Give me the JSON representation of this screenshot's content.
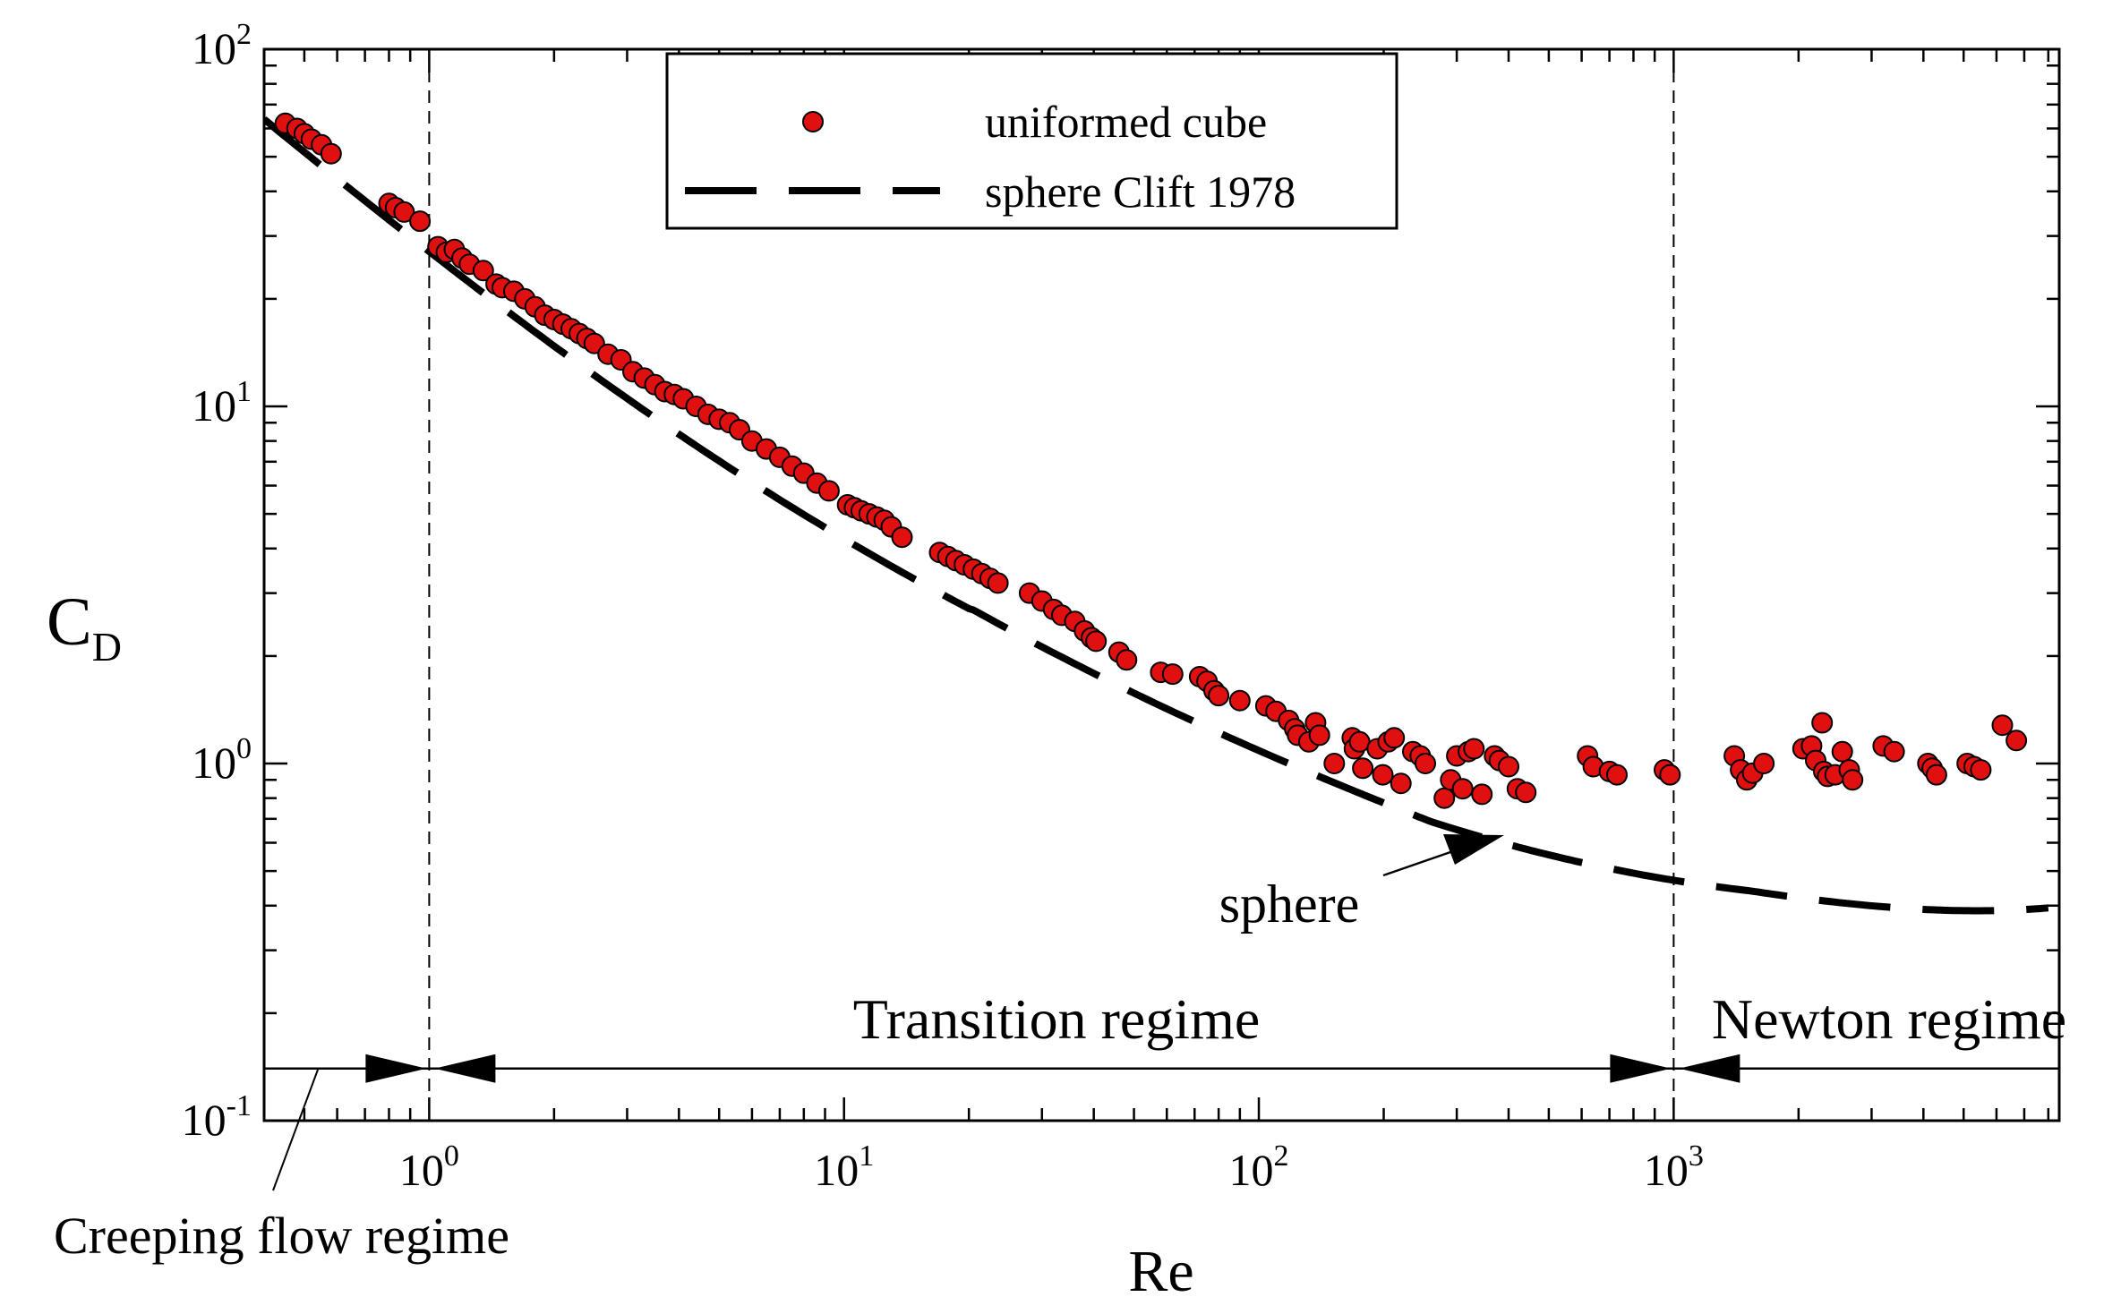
{
  "chart_data": {
    "type": "scatter",
    "title": "",
    "xlabel": "Re",
    "ylabel": "C",
    "ylabel_sub": "D",
    "xscale": "log",
    "yscale": "log",
    "xlim": [
      0.4,
      8500
    ],
    "ylim": [
      0.1,
      100
    ],
    "x_ticks": [
      {
        "value": 1,
        "base": "10",
        "exp": "0"
      },
      {
        "value": 10,
        "base": "10",
        "exp": "1"
      },
      {
        "value": 100,
        "base": "10",
        "exp": "2"
      },
      {
        "value": 1000,
        "base": "10",
        "exp": "3"
      }
    ],
    "y_ticks": [
      {
        "value": 0.1,
        "base": "10",
        "exp": "-1"
      },
      {
        "value": 1,
        "base": "10",
        "exp": "0"
      },
      {
        "value": 10,
        "base": "10",
        "exp": "1"
      },
      {
        "value": 100,
        "base": "10",
        "exp": "2"
      }
    ],
    "grid": false,
    "legend": {
      "position": "top-center",
      "entries": [
        {
          "label": "uniformed cube",
          "marker": "circle"
        },
        {
          "label": "sphere Clift 1978",
          "marker": "long-dash line"
        }
      ]
    },
    "series": [
      {
        "name": "uniformed cube",
        "kind": "scatter",
        "color": "#e01010",
        "edge_color": "#000000",
        "points": [
          [
            0.45,
            62
          ],
          [
            0.48,
            60
          ],
          [
            0.5,
            58
          ],
          [
            0.52,
            56
          ],
          [
            0.55,
            54
          ],
          [
            0.58,
            51
          ],
          [
            0.8,
            37
          ],
          [
            0.83,
            36
          ],
          [
            0.87,
            35
          ],
          [
            0.95,
            33
          ],
          [
            1.05,
            28
          ],
          [
            1.1,
            27
          ],
          [
            1.15,
            27.5
          ],
          [
            1.2,
            26
          ],
          [
            1.25,
            25
          ],
          [
            1.35,
            24
          ],
          [
            1.45,
            22
          ],
          [
            1.5,
            21.5
          ],
          [
            1.6,
            21
          ],
          [
            1.7,
            20
          ],
          [
            1.8,
            19
          ],
          [
            1.9,
            18
          ],
          [
            2.0,
            17.5
          ],
          [
            2.1,
            17
          ],
          [
            2.2,
            16.5
          ],
          [
            2.3,
            16
          ],
          [
            2.4,
            15.5
          ],
          [
            2.5,
            15
          ],
          [
            2.7,
            14
          ],
          [
            2.9,
            13.5
          ],
          [
            3.1,
            12.5
          ],
          [
            3.3,
            12
          ],
          [
            3.5,
            11.5
          ],
          [
            3.7,
            11
          ],
          [
            3.9,
            10.8
          ],
          [
            4.1,
            10.5
          ],
          [
            4.4,
            10
          ],
          [
            4.7,
            9.5
          ],
          [
            5.0,
            9.2
          ],
          [
            5.3,
            9
          ],
          [
            5.6,
            8.6
          ],
          [
            6.0,
            8
          ],
          [
            6.5,
            7.6
          ],
          [
            7.0,
            7.2
          ],
          [
            7.5,
            6.8
          ],
          [
            8.0,
            6.5
          ],
          [
            8.6,
            6.1
          ],
          [
            9.2,
            5.8
          ],
          [
            10.2,
            5.3
          ],
          [
            10.6,
            5.2
          ],
          [
            11,
            5.1
          ],
          [
            11.5,
            5
          ],
          [
            12,
            4.9
          ],
          [
            12.5,
            4.8
          ],
          [
            13,
            4.6
          ],
          [
            13.8,
            4.3
          ],
          [
            17,
            3.9
          ],
          [
            17.8,
            3.8
          ],
          [
            18.6,
            3.7
          ],
          [
            19.5,
            3.6
          ],
          [
            20.5,
            3.5
          ],
          [
            21.5,
            3.4
          ],
          [
            22.5,
            3.3
          ],
          [
            23.5,
            3.2
          ],
          [
            28,
            3.0
          ],
          [
            30,
            2.85
          ],
          [
            32,
            2.7
          ],
          [
            33.5,
            2.6
          ],
          [
            36,
            2.5
          ],
          [
            38,
            2.35
          ],
          [
            39.5,
            2.25
          ],
          [
            40.5,
            2.2
          ],
          [
            46,
            2.05
          ],
          [
            48,
            1.95
          ],
          [
            58,
            1.8
          ],
          [
            62,
            1.78
          ],
          [
            72,
            1.75
          ],
          [
            75,
            1.7
          ],
          [
            78,
            1.6
          ],
          [
            80,
            1.55
          ],
          [
            90,
            1.5
          ],
          [
            104,
            1.45
          ],
          [
            110,
            1.4
          ],
          [
            118,
            1.32
          ],
          [
            122,
            1.25
          ],
          [
            124,
            1.2
          ],
          [
            132,
            1.15
          ],
          [
            137,
            1.3
          ],
          [
            140,
            1.2
          ],
          [
            152,
            1.0
          ],
          [
            168,
            1.18
          ],
          [
            170,
            1.1
          ],
          [
            175,
            1.15
          ],
          [
            178,
            0.97
          ],
          [
            193,
            1.1
          ],
          [
            199,
            0.93
          ],
          [
            205,
            1.15
          ],
          [
            212,
            1.18
          ],
          [
            220,
            0.88
          ],
          [
            235,
            1.08
          ],
          [
            245,
            1.05
          ],
          [
            252,
            1.0
          ],
          [
            280,
            0.8
          ],
          [
            290,
            0.9
          ],
          [
            300,
            1.05
          ],
          [
            310,
            0.85
          ],
          [
            320,
            1.08
          ],
          [
            330,
            1.1
          ],
          [
            345,
            0.82
          ],
          [
            370,
            1.05
          ],
          [
            380,
            1.02
          ],
          [
            400,
            0.98
          ],
          [
            420,
            0.85
          ],
          [
            440,
            0.83
          ],
          [
            620,
            1.05
          ],
          [
            640,
            0.98
          ],
          [
            700,
            0.95
          ],
          [
            730,
            0.93
          ],
          [
            950,
            0.96
          ],
          [
            980,
            0.93
          ],
          [
            1400,
            1.05
          ],
          [
            1450,
            0.96
          ],
          [
            1500,
            0.9
          ],
          [
            1550,
            0.94
          ],
          [
            1650,
            1.0
          ],
          [
            2050,
            1.1
          ],
          [
            2150,
            1.12
          ],
          [
            2200,
            1.02
          ],
          [
            2280,
            1.3
          ],
          [
            2300,
            0.95
          ],
          [
            2350,
            0.92
          ],
          [
            2450,
            0.93
          ],
          [
            2550,
            1.08
          ],
          [
            2650,
            0.96
          ],
          [
            2700,
            0.9
          ],
          [
            3200,
            1.12
          ],
          [
            3400,
            1.08
          ],
          [
            4100,
            1.0
          ],
          [
            4200,
            0.97
          ],
          [
            4300,
            0.93
          ],
          [
            5100,
            1.0
          ],
          [
            5300,
            0.98
          ],
          [
            5500,
            0.96
          ],
          [
            6200,
            1.28
          ],
          [
            6700,
            1.16
          ]
        ]
      },
      {
        "name": "sphere Clift 1978",
        "kind": "line",
        "style": "long-dash",
        "color": "#000000",
        "x_range": [
          0.4,
          8000
        ]
      }
    ],
    "reference_lines": [
      {
        "axis": "x",
        "value": 1,
        "style": "dashed"
      },
      {
        "axis": "x",
        "value": 1000,
        "style": "dashed"
      }
    ],
    "regimes": {
      "baseline_value": 0.14,
      "items": [
        {
          "label": "Creeping flow regime",
          "from": 0.4,
          "to": 1
        },
        {
          "label": "Transition regime",
          "from": 1,
          "to": 1000
        },
        {
          "label": "Newton regime",
          "from": 1000,
          "to": 8500
        }
      ]
    },
    "annotations": [
      {
        "text": "sphere",
        "points_to": [
          430,
          0.62
        ]
      }
    ]
  }
}
